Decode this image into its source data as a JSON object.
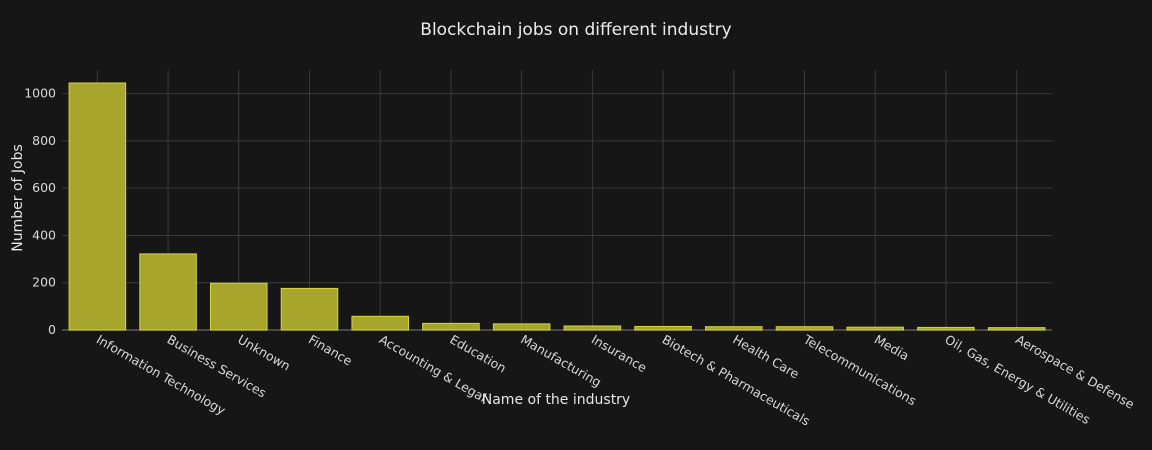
{
  "chart_data": {
    "type": "bar",
    "title": "Blockchain jobs on different industry",
    "xlabel": "Name of the industry",
    "ylabel": "Number of Jobs",
    "ylim": [
      0,
      1100
    ],
    "yticks": [
      0,
      200,
      400,
      600,
      800,
      1000
    ],
    "grid": true,
    "categories": [
      "Information Technology",
      "Business Services",
      "Unknown",
      "Finance",
      "Accounting & Legal",
      "Education",
      "Manufacturing",
      "Insurance",
      "Biotech & Pharmaceuticals",
      "Health Care",
      "Telecommunications",
      "Media",
      "Oil, Gas, Energy & Utilities",
      "Aerospace & Defense"
    ],
    "values": [
      1045,
      322,
      198,
      176,
      58,
      28,
      26,
      17,
      15,
      14,
      14,
      12,
      11,
      10
    ],
    "colors": {
      "background": "#161616",
      "grid": "#3a3a3a",
      "bar_fill": "#a8a52c",
      "bar_stroke": "#d6d43a"
    }
  }
}
